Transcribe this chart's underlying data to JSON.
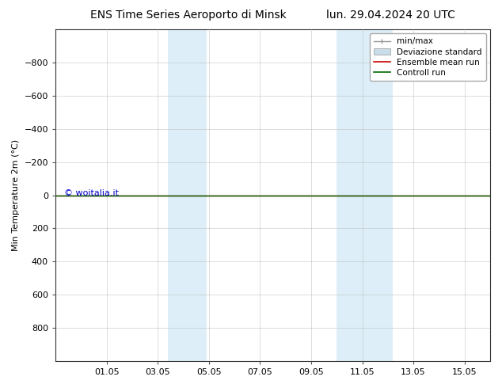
{
  "title_left": "ENS Time Series Aeroporto di Minsk",
  "title_right": "lun. 29.04.2024 20 UTC",
  "ylabel": "Min Temperature 2m (°C)",
  "ylim": [
    -1000,
    1000
  ],
  "yticks": [
    -800,
    -600,
    -400,
    -200,
    0,
    200,
    400,
    600,
    800
  ],
  "invert_yaxis": true,
  "xtick_labels": [
    "01.05",
    "03.05",
    "05.05",
    "07.05",
    "09.05",
    "11.05",
    "13.05",
    "15.05"
  ],
  "xtick_positions": [
    2,
    4,
    6,
    8,
    10,
    12,
    14,
    16
  ],
  "xlim": [
    0,
    17
  ],
  "watermark": "© woitalia.it",
  "watermark_color": "#0000cc",
  "bg_color": "#ffffff",
  "plot_bg_color": "#ffffff",
  "grid_color": "#bbbbbb",
  "shaded_bands": [
    {
      "x_start": 4.4,
      "x_end": 5.9,
      "color": "#ddeef8"
    },
    {
      "x_start": 11.0,
      "x_end": 13.2,
      "color": "#ddeef8"
    }
  ],
  "control_run_color": "#006600",
  "ensemble_mean_color": "#cc0000",
  "minmax_color": "#999999",
  "std_color": "#c8dde8",
  "legend_labels": [
    "min/max",
    "Deviazione standard",
    "Ensemble mean run",
    "Controll run"
  ],
  "title_fontsize": 10,
  "axis_fontsize": 8,
  "watermark_fontsize": 8,
  "legend_fontsize": 7.5
}
